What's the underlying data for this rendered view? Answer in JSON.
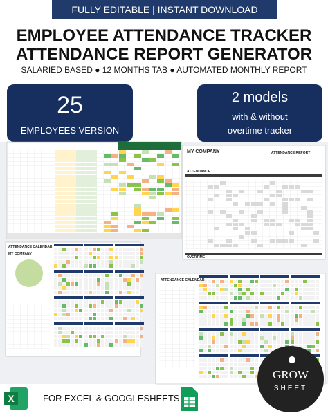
{
  "banner": "FULLY EDITABLE | INSTANT DOWNLOAD",
  "header": {
    "title_lines": [
      "EMPLOYEE ATTENDANCE TRACKER",
      "ATTENDANCE REPORT GENERATOR"
    ],
    "subtitle": "SALARIED BASED ● 12 MONTHS TAB ● AUTOMATED MONTHLY REPORT"
  },
  "badges": [
    {
      "lines": [
        "25",
        "EMPLOYEES VERSION"
      ]
    },
    {
      "lines": [
        "2 models",
        "with & without",
        "overtime tracker"
      ]
    }
  ],
  "screenshots": {
    "report": {
      "company": "MY COMPANY",
      "title": "ATTENDANCE REPORT",
      "section_1": "ATTENDANCE",
      "section_2": "OVERTIME"
    },
    "calendar": {
      "title": "ATTENDANCE CALENDAR",
      "company": "MY COMPANY"
    },
    "calendar_2": {
      "title": "ATTENDANCE CALENDAR"
    }
  },
  "footer": {
    "text": "FOR EXCEL & GOOGLESHEETS"
  },
  "logo": {
    "lines": [
      "GROW",
      "SHEET"
    ]
  }
}
